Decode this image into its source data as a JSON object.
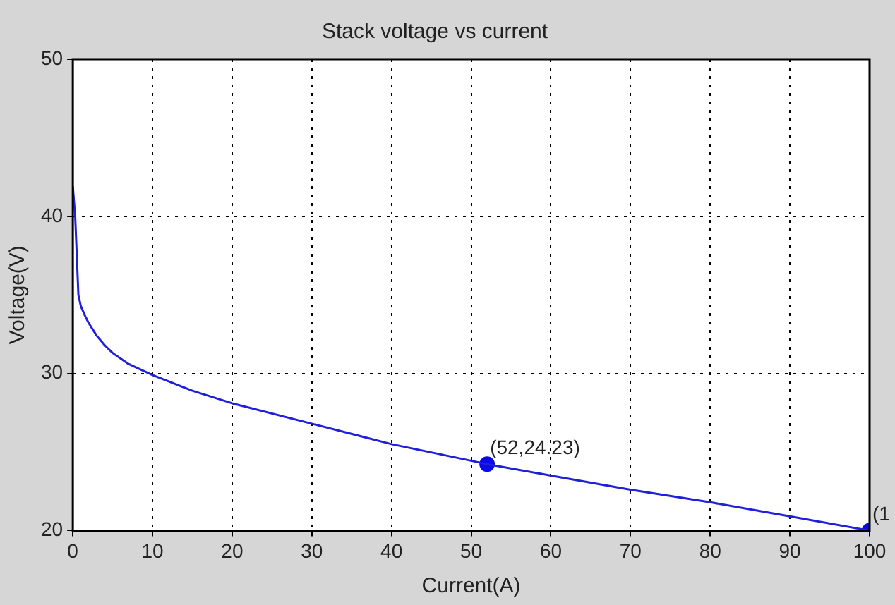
{
  "chart_data": {
    "type": "line",
    "title": "Stack voltage vs current",
    "xlabel": "Current(A)",
    "ylabel": "Voltage(V)",
    "x": [
      0,
      0.3,
      0.7,
      1,
      1.5,
      2,
      3,
      4,
      5,
      7,
      10,
      15,
      20,
      30,
      40,
      52,
      60,
      70,
      80,
      90,
      100
    ],
    "series": [
      {
        "color": "#1f1fdc",
        "values": [
          41.9,
          40,
          35,
          34.3,
          33.7,
          33.2,
          32.4,
          31.8,
          31.3,
          30.6,
          29.9,
          28.9,
          28.1,
          26.8,
          25.5,
          24.23,
          23.5,
          22.6,
          21.8,
          20.9,
          20
        ]
      },
      {
        "type": "scatter",
        "color": "#0a0ae6",
        "marker": "circle",
        "x": [
          52,
          100
        ],
        "values": [
          24.23,
          20
        ]
      }
    ],
    "annotations": [
      {
        "text": "(52,24.23)",
        "x": 52,
        "y": 24.23
      },
      {
        "text": "(1",
        "x": 100,
        "y": 20
      }
    ],
    "xlim": [
      0,
      100
    ],
    "xticks": [
      0,
      10,
      20,
      30,
      40,
      50,
      60,
      70,
      80,
      90,
      100
    ],
    "ylim": [
      20,
      50
    ],
    "yticks": [
      20,
      30,
      40,
      50
    ],
    "grid": true,
    "legend": false
  }
}
